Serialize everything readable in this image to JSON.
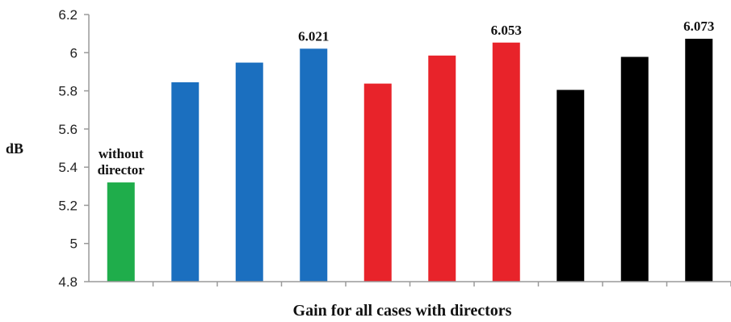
{
  "chart_data": {
    "type": "bar",
    "title": "",
    "xlabel": "Gain for all cases with directors",
    "ylabel": "dB",
    "ylim": [
      4.8,
      6.2
    ],
    "yticks": [
      "4.8",
      "5",
      "5.2",
      "5.4",
      "5.6",
      "5.8",
      "6",
      "6.2"
    ],
    "grid": false,
    "values": [
      5.32,
      5.845,
      5.948,
      6.021,
      5.838,
      5.985,
      6.053,
      5.805,
      5.978,
      6.073
    ],
    "colors": [
      "#1fad4b",
      "#1b6fbf",
      "#1b6fbf",
      "#1b6fbf",
      "#e8232a",
      "#e8232a",
      "#e8232a",
      "#000000",
      "#000000",
      "#000000"
    ],
    "data_labels": [
      {
        "index": 0,
        "lines": [
          "without",
          "director"
        ]
      },
      {
        "index": 3,
        "lines": [
          "6.021"
        ]
      },
      {
        "index": 6,
        "lines": [
          "6.053"
        ]
      },
      {
        "index": 9,
        "lines": [
          "6.073"
        ]
      }
    ]
  }
}
